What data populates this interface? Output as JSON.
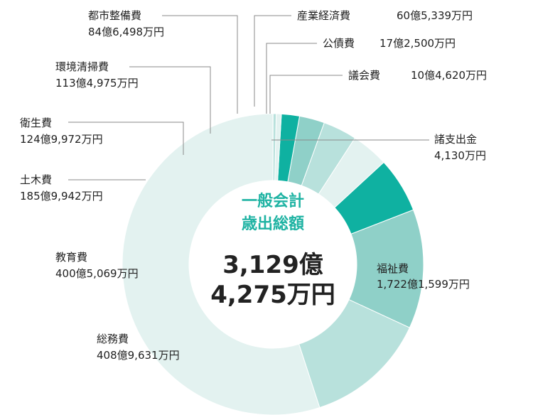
{
  "chart_data": {
    "type": "pie",
    "style": "donut",
    "title_lines": [
      "一般会計",
      "歳出総額"
    ],
    "total_lines": [
      "3,129億",
      "4,275万円"
    ],
    "total_value_man_yen": 31294275,
    "slices": [
      {
        "label": "福祉費",
        "amount": "1,722億1,599万円",
        "value": 17221599,
        "color": "#e3f2f0"
      },
      {
        "label": "総務費",
        "amount": "408億9,631万円",
        "value": 4089631,
        "color": "#b8e1dc"
      },
      {
        "label": "教育費",
        "amount": "400億5,069万円",
        "value": 4005069,
        "color": "#8fd0c8"
      },
      {
        "label": "土木費",
        "amount": "185億9,942万円",
        "value": 1859942,
        "color": "#0fb1a1"
      },
      {
        "label": "衛生費",
        "amount": "124億9,972万円",
        "value": 1249972,
        "color": "#e3f2f0"
      },
      {
        "label": "環境清掃費",
        "amount": "113億4,975万円",
        "value": 1134975,
        "color": "#b8e1dc"
      },
      {
        "label": "都市整備費",
        "amount": "84億6,498万円",
        "value": 846498,
        "color": "#8fd0c8"
      },
      {
        "label": "産業経済費",
        "amount": "60億5,339万円",
        "value": 605339,
        "color": "#0fb1a1"
      },
      {
        "label": "公債費",
        "amount": "17億2,500万円",
        "value": 172500,
        "color": "#e3f2f0"
      },
      {
        "label": "議会費",
        "amount": "10億4,620万円",
        "value": 104620,
        "color": "#b8e1dc"
      },
      {
        "label": "諸支出金",
        "amount": "4,130万円",
        "value": 4130,
        "color": "#8fd0c8"
      }
    ],
    "legend": "none",
    "grid": false
  }
}
